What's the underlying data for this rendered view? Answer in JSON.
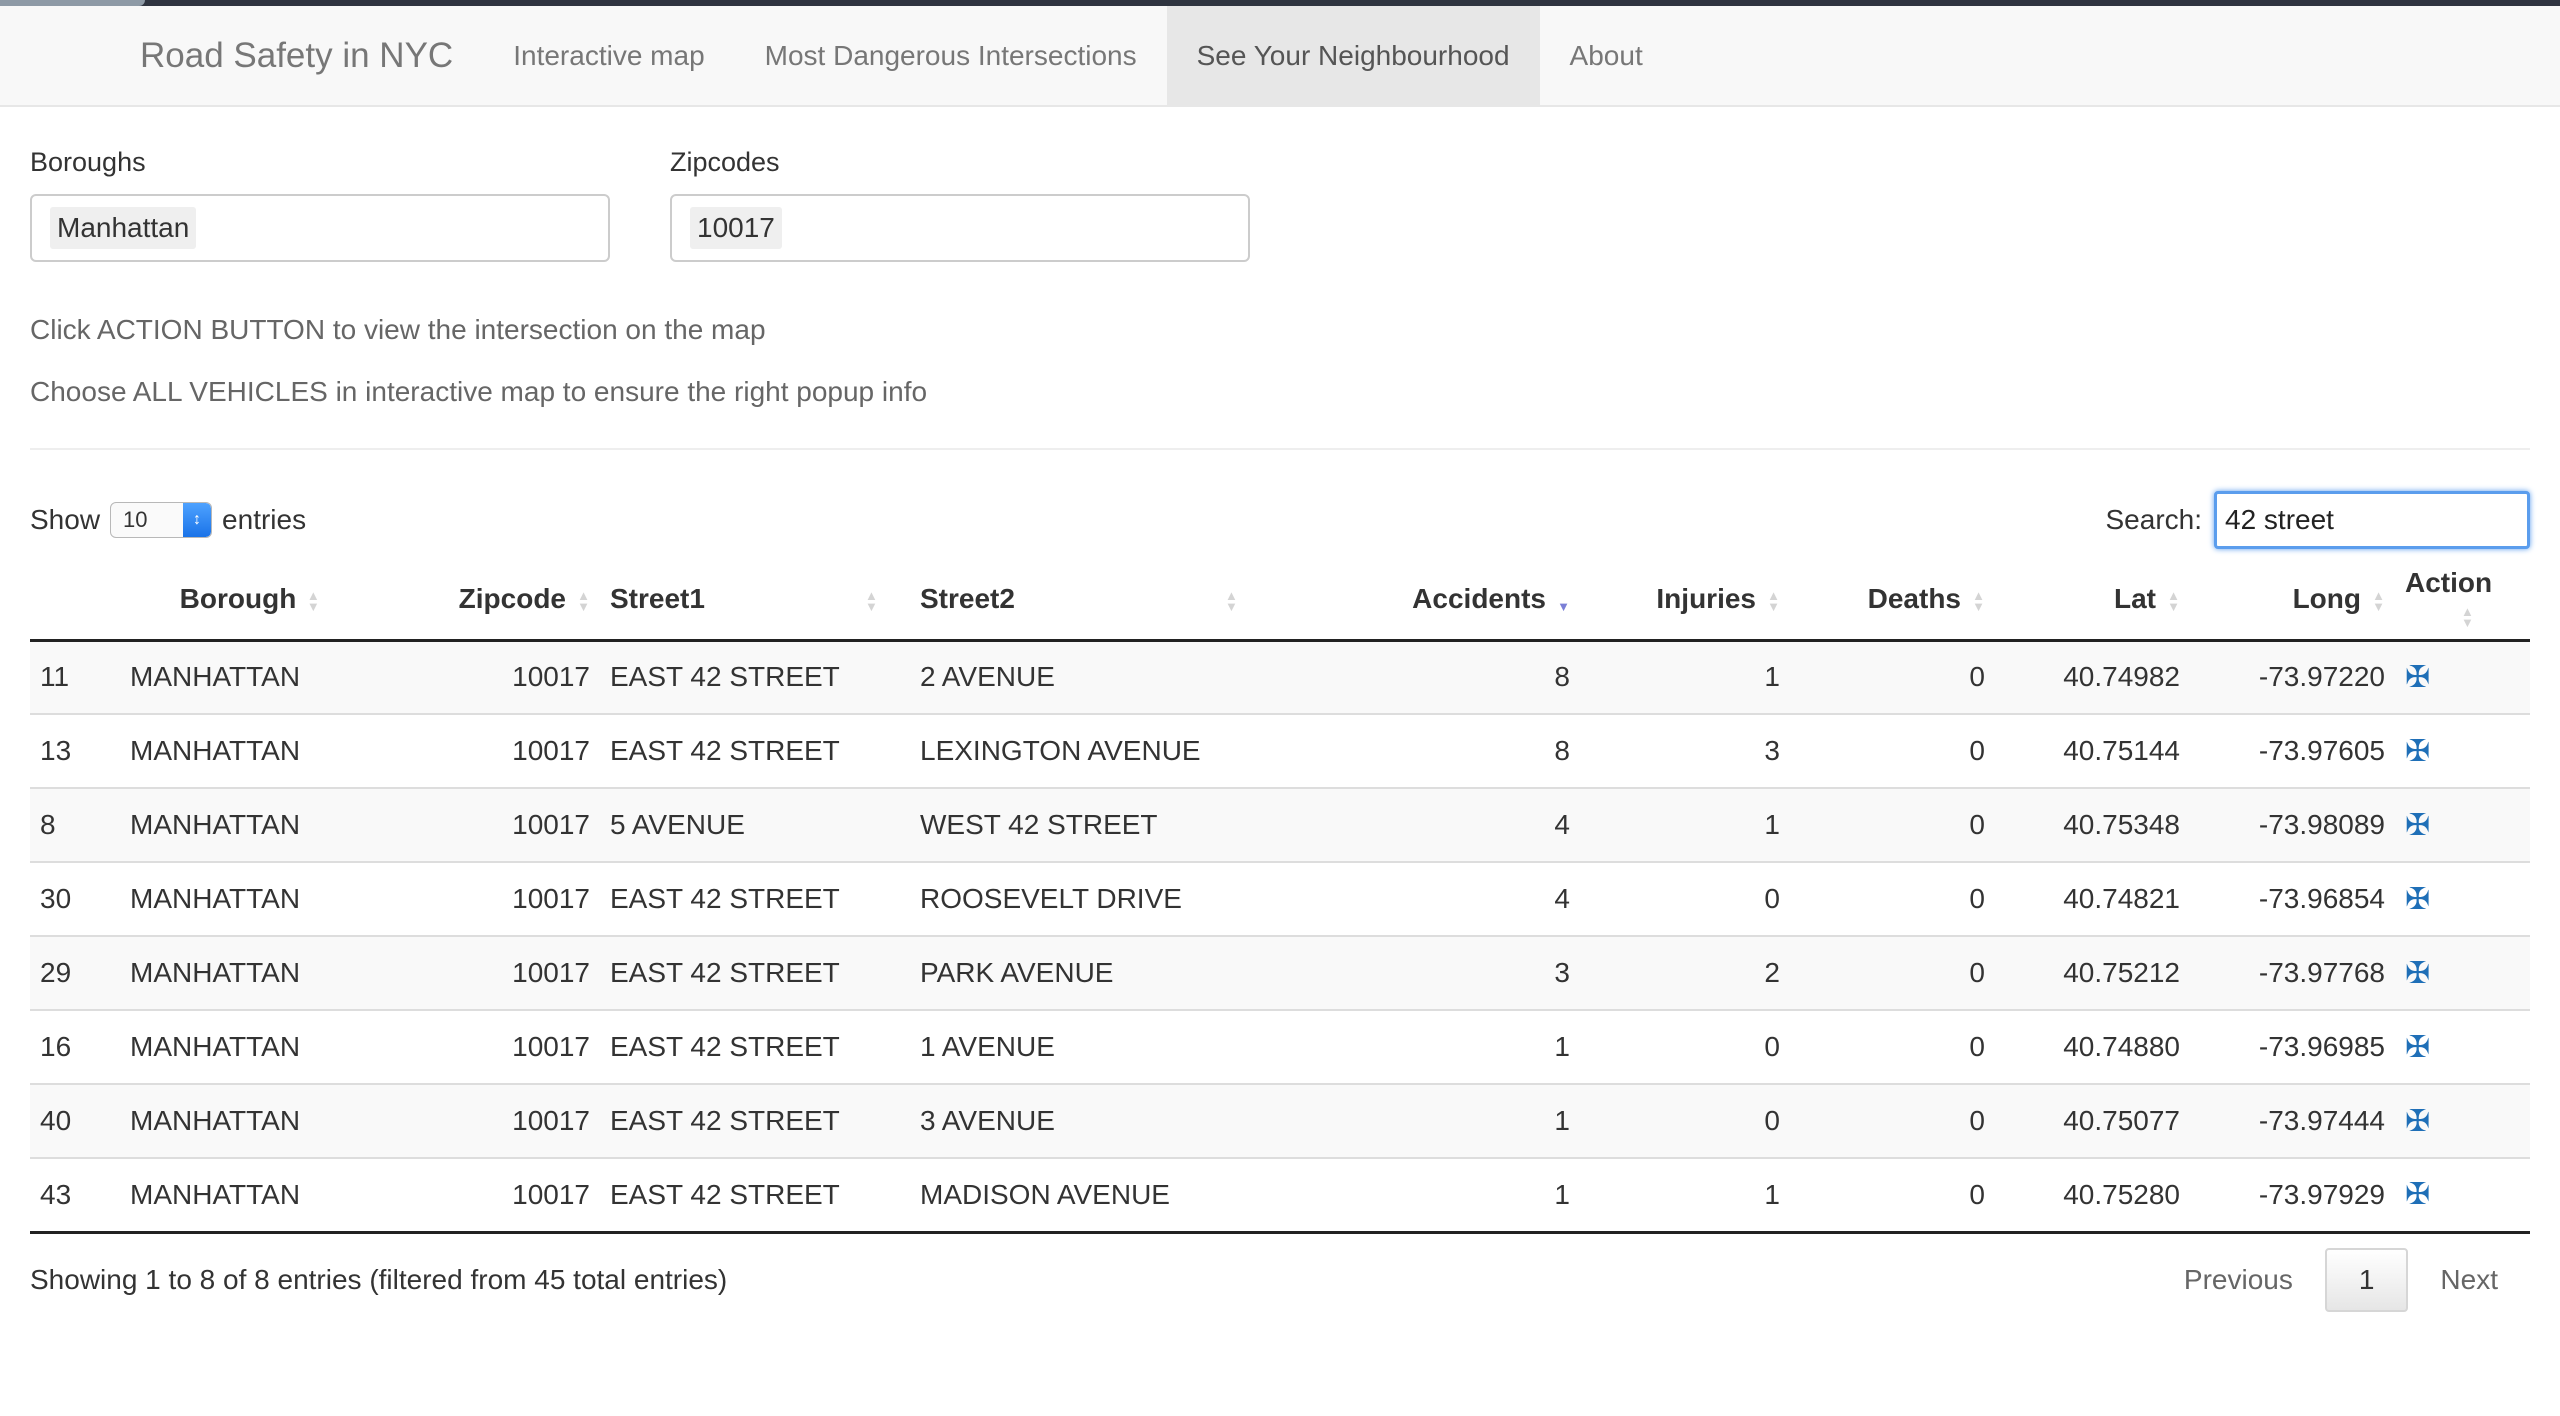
{
  "navbar": {
    "brand": "Road Safety in NYC",
    "items": [
      {
        "label": "Interactive map",
        "active": false
      },
      {
        "label": "Most Dangerous Intersections",
        "active": false
      },
      {
        "label": "See Your Neighbourhood",
        "active": true
      },
      {
        "label": "About",
        "active": false
      }
    ]
  },
  "filters": {
    "boroughs_label": "Boroughs",
    "boroughs_value": "Manhattan",
    "zipcodes_label": "Zipcodes",
    "zipcodes_value": "10017"
  },
  "notes": {
    "line1": "Click ACTION BUTTON to view the intersection on the map",
    "line2": "Choose ALL VEHICLES in interactive map to ensure the right popup info"
  },
  "controls": {
    "show_label": "Show",
    "entries_value": "10",
    "entries_label": "entries",
    "search_label": "Search:",
    "search_value": "42 street"
  },
  "table": {
    "headers": [
      "",
      "Borough",
      "Zipcode",
      "Street1",
      "Street2",
      "Accidents",
      "Injuries",
      "Deaths",
      "Lat",
      "Long",
      "Action"
    ],
    "sorted_column": "Accidents",
    "sort_direction": "desc",
    "rows": [
      [
        "11",
        "MANHATTAN",
        "10017",
        "EAST 42 STREET",
        "2 AVENUE",
        "8",
        "1",
        "0",
        "40.74982",
        "-73.97220"
      ],
      [
        "13",
        "MANHATTAN",
        "10017",
        "EAST 42 STREET",
        "LEXINGTON AVENUE",
        "8",
        "3",
        "0",
        "40.75144",
        "-73.97605"
      ],
      [
        "8",
        "MANHATTAN",
        "10017",
        "5 AVENUE",
        "WEST 42 STREET",
        "4",
        "1",
        "0",
        "40.75348",
        "-73.98089"
      ],
      [
        "30",
        "MANHATTAN",
        "10017",
        "EAST 42 STREET",
        "ROOSEVELT DRIVE",
        "4",
        "0",
        "0",
        "40.74821",
        "-73.96854"
      ],
      [
        "29",
        "MANHATTAN",
        "10017",
        "EAST 42 STREET",
        "PARK AVENUE",
        "3",
        "2",
        "0",
        "40.75212",
        "-73.97768"
      ],
      [
        "16",
        "MANHATTAN",
        "10017",
        "EAST 42 STREET",
        "1 AVENUE",
        "1",
        "0",
        "0",
        "40.74880",
        "-73.96985"
      ],
      [
        "40",
        "MANHATTAN",
        "10017",
        "EAST 42 STREET",
        "3 AVENUE",
        "1",
        "0",
        "0",
        "40.75077",
        "-73.97444"
      ],
      [
        "43",
        "MANHATTAN",
        "10017",
        "EAST 42 STREET",
        "MADISON AVENUE",
        "1",
        "1",
        "0",
        "40.75280",
        "-73.97929"
      ]
    ],
    "action_icon": "crosshair-icon"
  },
  "footer": {
    "info": "Showing 1 to 8 of 8 entries (filtered from 45 total entries)",
    "previous": "Previous",
    "current_page": "1",
    "next": "Next"
  }
}
